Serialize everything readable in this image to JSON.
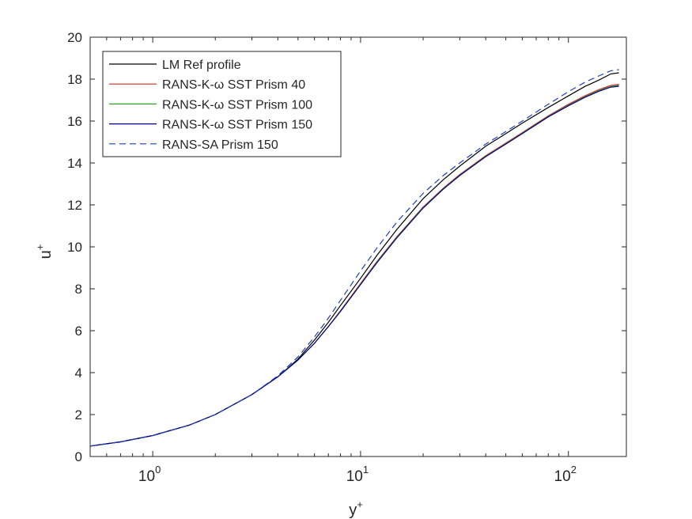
{
  "chart_data": {
    "type": "line",
    "xscale": "log",
    "xlim": [
      0.5,
      190
    ],
    "ylim": [
      0,
      20
    ],
    "xlabel": "y",
    "xlabel_sup": "+",
    "ylabel": "u",
    "ylabel_sup": "+",
    "xticks": [
      {
        "value": 1,
        "base": "10",
        "exp": "0"
      },
      {
        "value": 10,
        "base": "10",
        "exp": "1"
      },
      {
        "value": 100,
        "base": "10",
        "exp": "2"
      }
    ],
    "yticks": [
      0,
      2,
      4,
      6,
      8,
      10,
      12,
      14,
      16,
      18,
      20
    ],
    "legend_position": "top-left",
    "series": [
      {
        "name": "LM Ref profile",
        "color": "#000000",
        "dash": "solid",
        "x": [
          0.5,
          0.7,
          1,
          1.5,
          2,
          3,
          4,
          5,
          6,
          7,
          8,
          10,
          12,
          15,
          20,
          25,
          30,
          40,
          50,
          60,
          80,
          100,
          120,
          140,
          160,
          175
        ],
        "y": [
          0.5,
          0.7,
          1.0,
          1.5,
          2.0,
          2.95,
          3.8,
          4.65,
          5.55,
          6.4,
          7.2,
          8.5,
          9.6,
          10.85,
          12.3,
          13.2,
          13.85,
          14.8,
          15.4,
          15.9,
          16.65,
          17.2,
          17.65,
          17.95,
          18.25,
          18.3
        ]
      },
      {
        "name": "RANS-K-ω SST Prism 40",
        "color": "#d62728",
        "dash": "solid",
        "x": [
          0.5,
          0.7,
          1,
          1.5,
          2,
          3,
          4,
          5,
          6,
          7,
          8,
          10,
          12,
          15,
          20,
          25,
          30,
          40,
          50,
          60,
          80,
          100,
          120,
          140,
          160,
          175
        ],
        "y": [
          0.5,
          0.7,
          1.0,
          1.5,
          2.0,
          2.95,
          3.8,
          4.6,
          5.4,
          6.2,
          6.95,
          8.25,
          9.3,
          10.5,
          11.9,
          12.8,
          13.45,
          14.35,
          14.95,
          15.45,
          16.25,
          16.8,
          17.2,
          17.5,
          17.7,
          17.75
        ]
      },
      {
        "name": "RANS-K-ω SST Prism 100",
        "color": "#2ca02c",
        "dash": "solid",
        "x": [
          0.5,
          0.7,
          1,
          1.5,
          2,
          3,
          4,
          5,
          6,
          7,
          8,
          10,
          12,
          15,
          20,
          25,
          30,
          40,
          50,
          60,
          80,
          100,
          120,
          140,
          160,
          175
        ],
        "y": [
          0.5,
          0.7,
          1.0,
          1.5,
          2.0,
          2.95,
          3.8,
          4.6,
          5.4,
          6.2,
          6.93,
          8.22,
          9.27,
          10.47,
          11.87,
          12.77,
          13.42,
          14.32,
          14.92,
          15.42,
          16.22,
          16.76,
          17.16,
          17.45,
          17.65,
          17.7
        ]
      },
      {
        "name": "RANS-K-ω SST Prism 150",
        "color": "#00008b",
        "dash": "solid",
        "x": [
          0.5,
          0.7,
          1,
          1.5,
          2,
          3,
          4,
          5,
          6,
          7,
          8,
          10,
          12,
          15,
          20,
          25,
          30,
          40,
          50,
          60,
          80,
          100,
          120,
          140,
          160,
          175
        ],
        "y": [
          0.5,
          0.7,
          1.0,
          1.5,
          2.0,
          2.95,
          3.8,
          4.6,
          5.4,
          6.2,
          6.92,
          8.2,
          9.25,
          10.45,
          11.85,
          12.75,
          13.4,
          14.3,
          14.9,
          15.4,
          16.2,
          16.73,
          17.13,
          17.42,
          17.62,
          17.66
        ]
      },
      {
        "name": "RANS-SA Prism 150",
        "color": "#1f3fbf",
        "dash": "dashed",
        "x": [
          0.5,
          0.7,
          1,
          1.5,
          2,
          3,
          4,
          5,
          6,
          7,
          8,
          10,
          12,
          15,
          20,
          25,
          30,
          40,
          50,
          60,
          80,
          100,
          120,
          140,
          160,
          175
        ],
        "y": [
          0.5,
          0.7,
          1.0,
          1.5,
          2.0,
          2.95,
          3.85,
          4.75,
          5.7,
          6.6,
          7.45,
          8.85,
          9.95,
          11.2,
          12.55,
          13.4,
          14.0,
          14.9,
          15.5,
          16.0,
          16.8,
          17.4,
          17.85,
          18.15,
          18.4,
          18.45
        ]
      }
    ]
  }
}
